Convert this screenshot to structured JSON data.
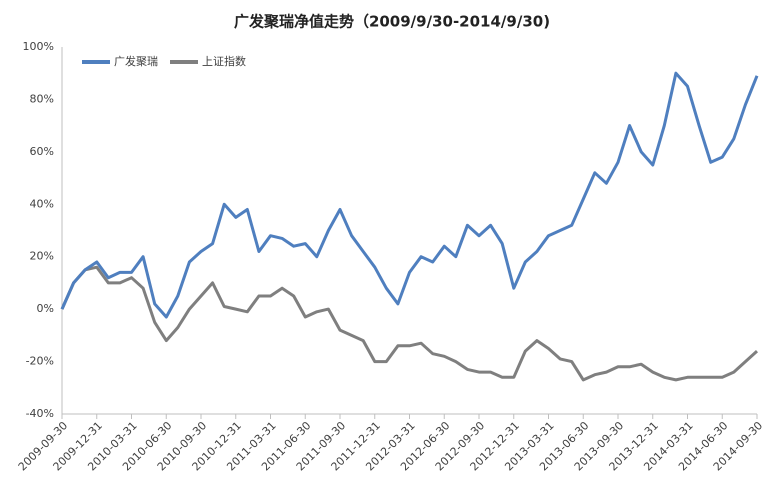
{
  "chart_data": {
    "type": "line",
    "title": "广发聚瑞净值走势（2009/9/30-2014/9/30)",
    "categories": [
      "2009-09-30",
      null,
      null,
      "2009-12-31",
      null,
      null,
      "2010-03-31",
      null,
      null,
      "2010-06-30",
      null,
      null,
      "2010-09-30",
      null,
      null,
      "2010-12-31",
      null,
      null,
      "2011-03-31",
      null,
      null,
      "2011-06-30",
      null,
      null,
      "2011-09-30",
      null,
      null,
      "2011-12-31",
      null,
      null,
      "2012-03-31",
      null,
      null,
      "2012-06-30",
      null,
      null,
      "2012-09-30",
      null,
      null,
      "2012-12-31",
      null,
      null,
      "2013-03-31",
      null,
      null,
      "2013-06-30",
      null,
      null,
      "2013-09-30",
      null,
      null,
      "2013-12-31",
      null,
      null,
      "2014-03-31",
      null,
      null,
      "2014-06-30",
      null,
      null,
      "2014-09-30"
    ],
    "series": [
      {
        "name": "广发聚瑞",
        "color": "#4f7fbf",
        "values": [
          0,
          10,
          15,
          18,
          12,
          14,
          14,
          20,
          2,
          -3,
          5,
          18,
          22,
          25,
          40,
          35,
          38,
          22,
          28,
          27,
          24,
          25,
          20,
          30,
          38,
          28,
          22,
          16,
          8,
          2,
          14,
          20,
          18,
          24,
          20,
          32,
          28,
          32,
          25,
          8,
          18,
          22,
          28,
          30,
          32,
          42,
          52,
          48,
          56,
          70,
          60,
          55,
          70,
          90,
          85,
          70,
          56,
          58,
          65,
          78,
          89
        ]
      },
      {
        "name": "上证指数",
        "color": "#7f7f7f",
        "values": [
          0,
          10,
          15,
          16,
          10,
          10,
          12,
          8,
          -5,
          -12,
          -7,
          0,
          5,
          10,
          1,
          0,
          -1,
          5,
          5,
          8,
          5,
          -3,
          -1,
          0,
          -8,
          -10,
          -12,
          -20,
          -20,
          -14,
          -14,
          -13,
          -17,
          -18,
          -20,
          -23,
          -24,
          -24,
          -26,
          -26,
          -16,
          -12,
          -15,
          -19,
          -20,
          -27,
          -25,
          -24,
          -22,
          -22,
          -21,
          -24,
          -26,
          -27,
          -26,
          -26,
          -26,
          -26,
          -24,
          -20,
          -16
        ]
      }
    ],
    "ylim": [
      -40,
      100
    ],
    "yticks": [
      {
        "value": -40,
        "label": "-40%"
      },
      {
        "value": -20,
        "label": "-20%"
      },
      {
        "value": 0,
        "label": "0%"
      },
      {
        "value": 20,
        "label": "20%"
      },
      {
        "value": 40,
        "label": "40%"
      },
      {
        "value": 60,
        "label": "60%"
      },
      {
        "value": 80,
        "label": "80%"
      },
      {
        "value": 100,
        "label": "100%"
      }
    ],
    "grid": false,
    "legend": "upper left"
  }
}
